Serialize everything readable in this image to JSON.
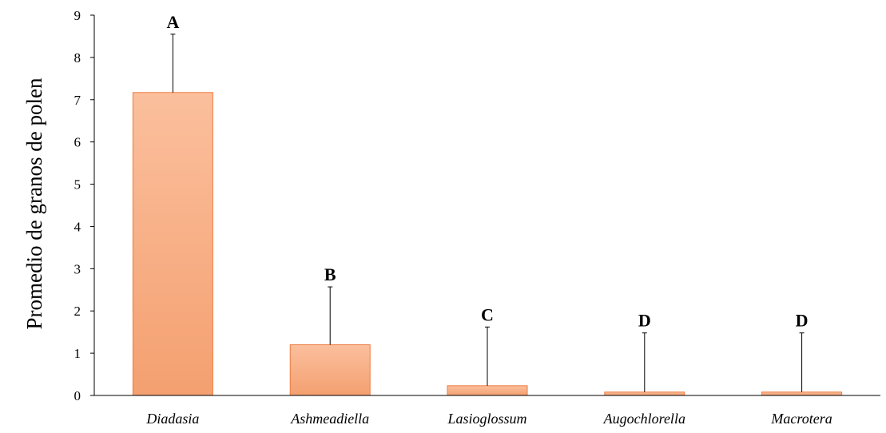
{
  "chart_data": {
    "type": "bar",
    "title": "",
    "xlabel": "",
    "ylabel": "Promedio de granos de polen",
    "ylim": [
      0,
      9
    ],
    "yticks": [
      0,
      1,
      2,
      3,
      4,
      5,
      6,
      7,
      8,
      9
    ],
    "categories": [
      "Diadasia",
      "Ashmeadiella",
      "Lasioglossum",
      "Augochlorella",
      "Macrotera"
    ],
    "values": [
      7.17,
      1.2,
      0.23,
      0.08,
      0.08
    ],
    "error_upper": [
      8.55,
      2.57,
      1.62,
      1.48,
      1.48
    ],
    "significance_letters": [
      "A",
      "B",
      "C",
      "D",
      "D"
    ],
    "grid": false,
    "legend": "none",
    "colors": {
      "bar_top": "#fbbf9d",
      "bar_bottom": "#f4a070",
      "bar_edge": "#ee7c3e",
      "axis": "#000000",
      "error_bar": "#000000"
    }
  }
}
